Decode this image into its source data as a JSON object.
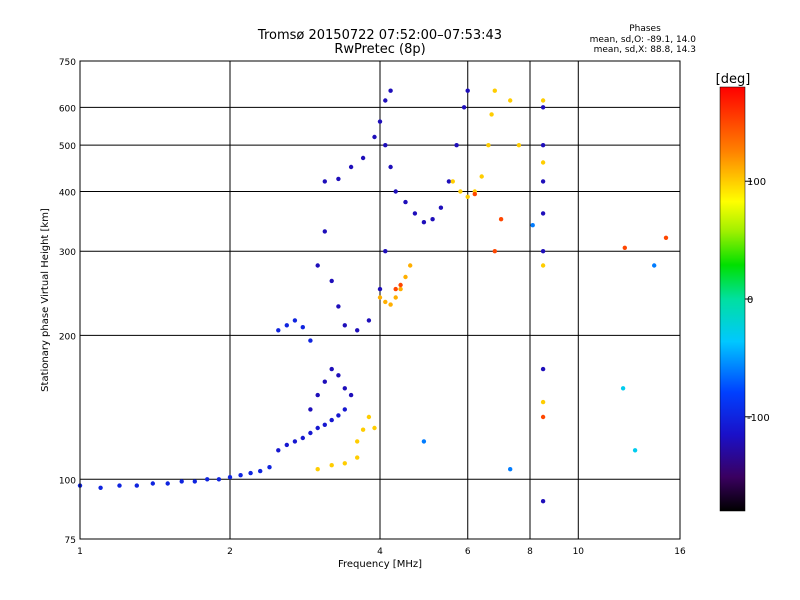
{
  "chart_data": {
    "type": "scatter",
    "title": "Tromsø 20150722 07:52:00–07:53:43",
    "subtitle": "RwPretec (8p)",
    "xlabel": "Frequency [MHz]",
    "ylabel": "Stationary phase Virtual Height [km]",
    "x_scale": "log",
    "y_scale": "log",
    "xlim": [
      1,
      16
    ],
    "ylim": [
      75,
      750
    ],
    "x_ticks": [
      "1",
      "2",
      "4",
      "6",
      "8",
      "10",
      "16"
    ],
    "x_tick_values": [
      1,
      2,
      4,
      6,
      8,
      10,
      16
    ],
    "y_ticks": [
      "75",
      "100",
      "200",
      "300",
      "400",
      "500",
      "600",
      "750"
    ],
    "y_tick_values": [
      75,
      100,
      200,
      300,
      400,
      500,
      600,
      750
    ],
    "grid": true,
    "phase_stats": {
      "title": "Phases",
      "o_line": "mean, sd,O: -89.1, 14.0",
      "x_line": "mean, sd,X:  88.8, 14.3"
    },
    "colorbar": {
      "label": "[deg]",
      "range": [
        -180,
        180
      ],
      "ticks": [
        "100",
        "0",
        "-100"
      ],
      "tick_values": [
        100,
        0,
        -100
      ]
    },
    "traces": [
      {
        "phase": -100,
        "points": [
          [
            1.0,
            97
          ],
          [
            1.1,
            96
          ],
          [
            1.2,
            97
          ],
          [
            1.3,
            97
          ],
          [
            1.4,
            98
          ],
          [
            1.5,
            98
          ],
          [
            1.6,
            99
          ],
          [
            1.7,
            99
          ],
          [
            1.8,
            100
          ],
          [
            1.9,
            100
          ],
          [
            2.0,
            101
          ],
          [
            2.1,
            102
          ],
          [
            2.2,
            103
          ],
          [
            2.3,
            104
          ],
          [
            2.4,
            106
          ]
        ]
      },
      {
        "phase": -110,
        "points": [
          [
            2.5,
            115
          ],
          [
            2.6,
            118
          ],
          [
            2.7,
            120
          ],
          [
            2.8,
            122
          ],
          [
            2.9,
            125
          ],
          [
            3.0,
            128
          ],
          [
            3.1,
            130
          ],
          [
            3.2,
            133
          ],
          [
            3.3,
            136
          ],
          [
            3.4,
            140
          ]
        ]
      },
      {
        "phase": -120,
        "points": [
          [
            2.9,
            140
          ],
          [
            3.0,
            150
          ],
          [
            3.1,
            160
          ],
          [
            3.2,
            170
          ],
          [
            3.3,
            165
          ],
          [
            3.4,
            155
          ],
          [
            3.5,
            150
          ]
        ]
      },
      {
        "phase": -100,
        "points": [
          [
            2.5,
            205
          ],
          [
            2.6,
            210
          ],
          [
            2.7,
            215
          ],
          [
            2.8,
            208
          ],
          [
            2.9,
            195
          ]
        ]
      },
      {
        "phase": -120,
        "points": [
          [
            3.0,
            280
          ],
          [
            3.1,
            330
          ],
          [
            3.2,
            260
          ],
          [
            3.3,
            230
          ],
          [
            3.4,
            210
          ],
          [
            3.6,
            205
          ],
          [
            3.8,
            215
          ],
          [
            4.0,
            250
          ],
          [
            4.1,
            300
          ]
        ]
      },
      {
        "phase": 100,
        "points": [
          [
            3.0,
            105
          ],
          [
            3.2,
            107
          ],
          [
            3.4,
            108
          ],
          [
            3.6,
            111
          ]
        ]
      },
      {
        "phase": 100,
        "points": [
          [
            3.6,
            120
          ],
          [
            3.7,
            127
          ],
          [
            3.8,
            135
          ],
          [
            3.9,
            128
          ]
        ]
      },
      {
        "phase": 110,
        "points": [
          [
            4.0,
            240
          ],
          [
            4.1,
            235
          ],
          [
            4.2,
            232
          ],
          [
            4.3,
            240
          ],
          [
            4.4,
            250
          ],
          [
            4.5,
            265
          ],
          [
            4.6,
            280
          ]
        ]
      },
      {
        "phase": 150,
        "points": [
          [
            4.3,
            250
          ],
          [
            4.4,
            255
          ]
        ]
      },
      {
        "phase": -120,
        "points": [
          [
            3.1,
            420
          ],
          [
            3.3,
            425
          ],
          [
            3.5,
            450
          ],
          [
            3.7,
            470
          ],
          [
            3.9,
            520
          ],
          [
            4.0,
            560
          ],
          [
            4.1,
            620
          ],
          [
            4.2,
            650
          ]
        ]
      },
      {
        "phase": -120,
        "points": [
          [
            4.1,
            500
          ],
          [
            4.2,
            450
          ],
          [
            4.3,
            400
          ],
          [
            4.5,
            380
          ],
          [
            4.7,
            360
          ],
          [
            4.9,
            345
          ],
          [
            5.1,
            350
          ],
          [
            5.3,
            370
          ],
          [
            5.5,
            420
          ],
          [
            5.7,
            500
          ],
          [
            5.9,
            600
          ],
          [
            6.0,
            650
          ]
        ]
      },
      {
        "phase": 100,
        "points": [
          [
            5.6,
            420
          ],
          [
            5.8,
            400
          ],
          [
            6.0,
            390
          ],
          [
            6.2,
            400
          ],
          [
            6.4,
            430
          ],
          [
            6.6,
            500
          ],
          [
            6.7,
            580
          ],
          [
            6.8,
            650
          ]
        ]
      },
      {
        "phase": -120,
        "points": [
          [
            8.5,
            90
          ],
          [
            8.5,
            170
          ],
          [
            8.5,
            300
          ],
          [
            8.5,
            360
          ],
          [
            8.5,
            420
          ],
          [
            8.5,
            500
          ],
          [
            8.5,
            600
          ]
        ]
      },
      {
        "phase": 100,
        "points": [
          [
            8.5,
            145
          ],
          [
            8.5,
            280
          ],
          [
            8.5,
            460
          ],
          [
            8.5,
            620
          ],
          [
            7.6,
            500
          ],
          [
            7.3,
            620
          ]
        ]
      },
      {
        "phase": 150,
        "points": [
          [
            8.5,
            135
          ],
          [
            12.4,
            305
          ],
          [
            15.0,
            320
          ],
          [
            6.8,
            300
          ],
          [
            7.0,
            350
          ],
          [
            6.2,
            395
          ]
        ]
      },
      {
        "phase": -60,
        "points": [
          [
            4.9,
            120
          ],
          [
            8.1,
            340
          ],
          [
            7.3,
            105
          ],
          [
            14.2,
            280
          ]
        ]
      },
      {
        "phase": -30,
        "points": [
          [
            12.3,
            155
          ],
          [
            13.0,
            115
          ]
        ]
      }
    ]
  }
}
